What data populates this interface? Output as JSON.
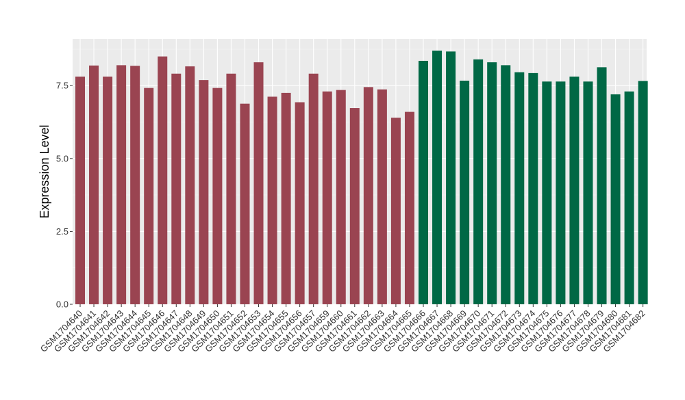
{
  "chart_data": {
    "type": "bar",
    "title": "",
    "xlabel": "",
    "ylabel": "Expression Level",
    "ylim": [
      0,
      9.1
    ],
    "yticks": [
      0.0,
      2.5,
      5.0,
      7.5
    ],
    "ytick_labels": [
      "0.0",
      "2.5",
      "5.0",
      "7.5"
    ],
    "grid": true,
    "legend": "none",
    "background": "#ebebeb",
    "categories": [
      "GSM1704640",
      "GSM1704641",
      "GSM1704642",
      "GSM1704643",
      "GSM1704644",
      "GSM1704645",
      "GSM1704646",
      "GSM1704647",
      "GSM1704648",
      "GSM1704649",
      "GSM1704650",
      "GSM1704651",
      "GSM1704652",
      "GSM1704653",
      "GSM1704654",
      "GSM1704655",
      "GSM1704656",
      "GSM1704657",
      "GSM1704659",
      "GSM1704660",
      "GSM1704661",
      "GSM1704662",
      "GSM1704663",
      "GSM1704664",
      "GSM1704665",
      "GSM1704666",
      "GSM1704667",
      "GSM1704668",
      "GSM1704669",
      "GSM1704670",
      "GSM1704671",
      "GSM1704672",
      "GSM1704673",
      "GSM1704674",
      "GSM1704675",
      "GSM1704676",
      "GSM1704677",
      "GSM1704678",
      "GSM1704679",
      "GSM1704680",
      "GSM1704681",
      "GSM1704682"
    ],
    "values": [
      7.81,
      8.19,
      7.81,
      8.2,
      8.18,
      7.42,
      8.5,
      7.91,
      8.16,
      7.69,
      7.42,
      7.91,
      6.88,
      8.3,
      7.12,
      7.25,
      6.93,
      7.91,
      7.3,
      7.35,
      6.73,
      7.45,
      7.37,
      6.4,
      6.6,
      8.35,
      8.7,
      8.67,
      7.67,
      8.4,
      8.3,
      8.2,
      7.96,
      7.93,
      7.64,
      7.64,
      7.81,
      7.64,
      8.13,
      7.2,
      7.3,
      7.66
    ],
    "groups": [
      "A",
      "A",
      "A",
      "A",
      "A",
      "A",
      "A",
      "A",
      "A",
      "A",
      "A",
      "A",
      "A",
      "A",
      "A",
      "A",
      "A",
      "A",
      "A",
      "A",
      "A",
      "A",
      "A",
      "A",
      "A",
      "B",
      "B",
      "B",
      "B",
      "B",
      "B",
      "B",
      "B",
      "B",
      "B",
      "B",
      "B",
      "B",
      "B",
      "B",
      "B",
      "B"
    ],
    "colors": {
      "A": "#9a4451",
      "B": "#006845"
    }
  }
}
